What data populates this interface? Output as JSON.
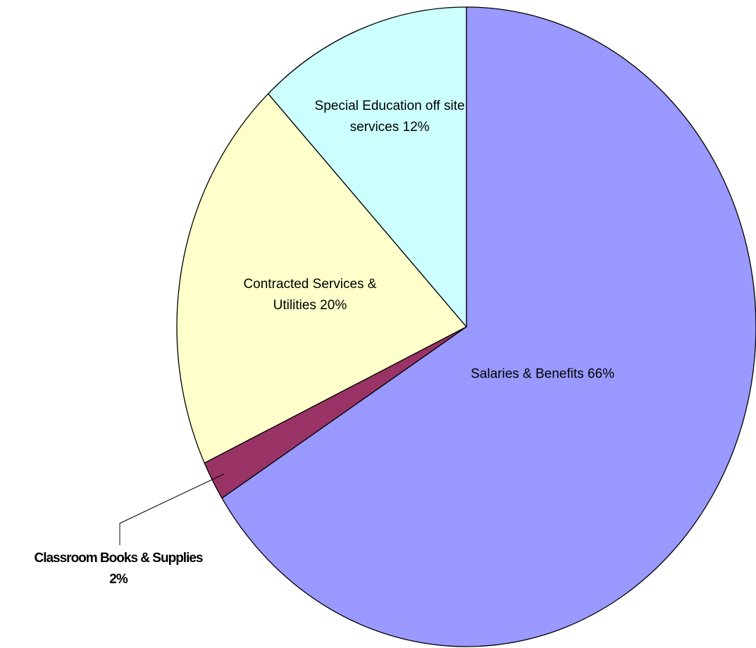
{
  "chart_data": {
    "type": "pie",
    "title": "",
    "start_angle_deg": 0,
    "direction": "clockwise",
    "slices": [
      {
        "name": "Salaries & Benefits",
        "value": 66,
        "label_lines": [
          "Salaries & Benefits 66%"
        ],
        "color": "#9999FF"
      },
      {
        "name": "Classroom Books & Supplies",
        "value": 2,
        "label_lines": [
          "Classroom Books &  Supplies",
          "2%"
        ],
        "color": "#993366"
      },
      {
        "name": "Contracted Services & Utilities",
        "value": 20,
        "label_lines": [
          "Contracted Services &",
          "Utilities 20%"
        ],
        "color": "#FFFFCC"
      },
      {
        "name": "Special Education off site services",
        "value": 12,
        "label_lines": [
          "Special Education off site",
          "services 12%"
        ],
        "color": "#CCFFFF"
      }
    ]
  }
}
